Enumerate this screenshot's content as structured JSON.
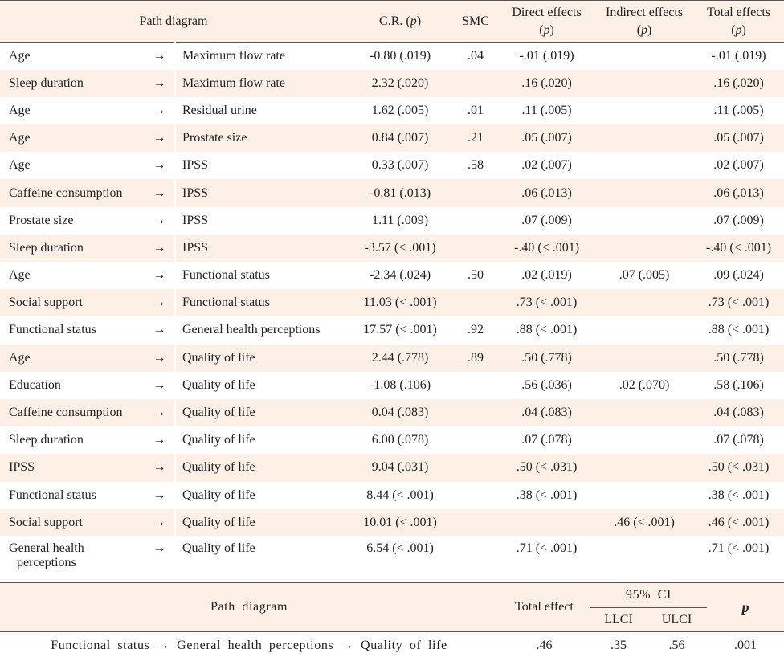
{
  "header": {
    "path_diagram": "Path diagram",
    "cr": "C.R.",
    "smc": "SMC",
    "direct": "Direct effects",
    "indirect": "Indirect effects",
    "total": "Total effects",
    "p": "p",
    "p_open": "(",
    "p_close": ")"
  },
  "arrow": "→",
  "rows": [
    {
      "from": "Age",
      "to": "Maximum flow rate",
      "cr": "-0.80 (.019)",
      "smc": ".04",
      "direct": "-.01 (.019)",
      "indirect": "",
      "total": "-.01 (.019)"
    },
    {
      "from": "Sleep duration",
      "to": "Maximum flow rate",
      "cr": "2.32 (.020)",
      "smc": "",
      "direct": ".16 (.020)",
      "indirect": "",
      "total": ".16 (.020)"
    },
    {
      "from": "Age",
      "to": "Residual urine",
      "cr": "1.62 (.005)",
      "smc": ".01",
      "direct": ".11 (.005)",
      "indirect": "",
      "total": ".11 (.005)"
    },
    {
      "from": "Age",
      "to": "Prostate size",
      "cr": "0.84 (.007)",
      "smc": ".21",
      "direct": ".05 (.007)",
      "indirect": "",
      "total": ".05 (.007)"
    },
    {
      "from": "Age",
      "to": "IPSS",
      "cr": "0.33 (.007)",
      "smc": ".58",
      "direct": ".02 (.007)",
      "indirect": "",
      "total": ".02 (.007)"
    },
    {
      "from": "Caffeine consumption",
      "to": "IPSS",
      "cr": "-0.81 (.013)",
      "smc": "",
      "direct": ".06 (.013)",
      "indirect": "",
      "total": ".06 (.013)"
    },
    {
      "from": "Prostate size",
      "to": "IPSS",
      "cr": "1.11 (.009)",
      "smc": "",
      "direct": ".07 (.009)",
      "indirect": "",
      "total": ".07 (.009)"
    },
    {
      "from": "Sleep duration",
      "to": "IPSS",
      "cr": "-3.57 (< .001)",
      "smc": "",
      "direct": "-.40 (< .001)",
      "indirect": "",
      "total": "-.40 (< .001)"
    },
    {
      "from": "Age",
      "to": "Functional status",
      "cr": "-2.34 (.024)",
      "smc": ".50",
      "direct": ".02 (.019)",
      "indirect": ".07 (.005)",
      "total": ".09 (.024)"
    },
    {
      "from": "Social support",
      "to": "Functional status",
      "cr": "11.03 (< .001)",
      "smc": "",
      "direct": ".73 (< .001)",
      "indirect": "",
      "total": ".73 (< .001)"
    },
    {
      "from": "Functional status",
      "to": "General health perceptions",
      "cr": "17.57 (< .001)",
      "smc": ".92",
      "direct": ".88 (< .001)",
      "indirect": "",
      "total": ".88 (< .001)"
    },
    {
      "from": "Age",
      "to": "Quality of life",
      "cr": "2.44 (.778)",
      "smc": ".89",
      "direct": ".50 (.778)",
      "indirect": "",
      "total": ".50 (.778)"
    },
    {
      "from": "Education",
      "to": "Quality of life",
      "cr": "-1.08 (.106)",
      "smc": "",
      "direct": ".56 (.036)",
      "indirect": ".02 (.070)",
      "total": ".58 (.106)"
    },
    {
      "from": "Caffeine consumption",
      "to": "Quality of life",
      "cr": "0.04 (.083)",
      "smc": "",
      "direct": ".04 (.083)",
      "indirect": "",
      "total": ".04 (.083)"
    },
    {
      "from": "Sleep duration",
      "to": "Quality of life",
      "cr": "6.00 (.078)",
      "smc": "",
      "direct": ".07 (.078)",
      "indirect": "",
      "total": ".07 (.078)"
    },
    {
      "from": "IPSS",
      "to": "Quality of life",
      "cr": "9.04 (.031)",
      "smc": "",
      "direct": ".50 (< .031)",
      "indirect": "",
      "total": ".50 (< .031)"
    },
    {
      "from": "Functional status",
      "to": "Quality of life",
      "cr": "8.44 (< .001)",
      "smc": "",
      "direct": ".38 (< .001)",
      "indirect": "",
      "total": ".38 (< .001)"
    },
    {
      "from": "Social support",
      "to": "Quality of life",
      "cr": "10.01 (< .001)",
      "smc": "",
      "direct": "",
      "indirect": ".46 (< .001)",
      "total": ".46 (< .001)"
    },
    {
      "from": "General health",
      "from_line2": "perceptions",
      "to": "Quality of life",
      "cr": "6.54 (< .001)",
      "smc": "",
      "direct": ".71 (< .001)",
      "indirect": "",
      "total": ".71 (< .001)"
    }
  ],
  "mediation": {
    "path_diagram": "Path  diagram",
    "total_effect": "Total effect",
    "ci": "95%  CI",
    "llci": "LLCI",
    "ulci": "ULCI",
    "p": "p",
    "row": {
      "path": "Functional status → General health perceptions → Quality of life",
      "total": ".46",
      "llci": ".35",
      "ulci": ".56",
      "p": ".001"
    }
  }
}
